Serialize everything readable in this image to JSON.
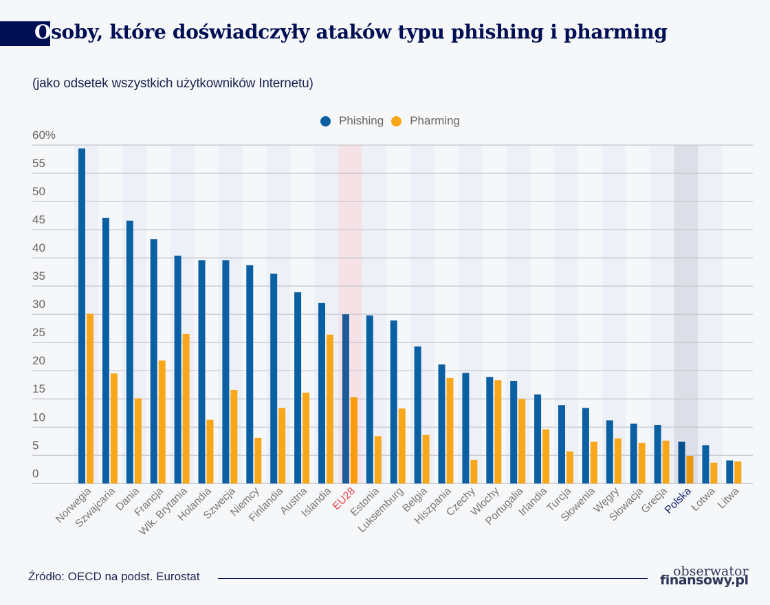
{
  "header": {
    "title_first_letter": "O",
    "title_rest": "soby, które doświadczyły ataków typu phishing i pharming",
    "subtitle": "(jako odsetek wszystkich użytkowników Internetu)"
  },
  "footer": {
    "source": "Źródło: OECD na podst. Eurostat",
    "logo_line1": "obserwator",
    "logo_line2": "finansowy.pl"
  },
  "colors": {
    "phishing": "#0b60a3",
    "pharming": "#f9a71a",
    "highlight_eu": "#f5e2e6",
    "highlight_pl": "#dcdfe7",
    "stripe": "#edf1f7",
    "eu_label": "#e8424c",
    "pl_label": "#13206b",
    "axis_text": "#666666"
  },
  "chart_data": {
    "type": "bar",
    "title": "Osoby, które doświadczyły ataków typu phishing i pharming",
    "subtitle": "(jako odsetek wszystkich użytkowników Internetu)",
    "xlabel": "",
    "ylabel": "",
    "ylim": [
      0,
      60
    ],
    "yticks": [
      0,
      5,
      10,
      15,
      20,
      25,
      30,
      35,
      40,
      45,
      50,
      55,
      60
    ],
    "ytick_labels": [
      "0",
      "5",
      "10",
      "15",
      "20",
      "25",
      "30",
      "35",
      "40",
      "45",
      "50",
      "55",
      "60%"
    ],
    "grid": true,
    "legend_position": "top-center",
    "categories": [
      "Norwegia",
      "Szwajcaria",
      "Dania",
      "Francja",
      "Wlk. Brytania",
      "Holandia",
      "Szwecja",
      "Niemcy",
      "Finlandia",
      "Austria",
      "Islandia",
      "EU28",
      "Estonia",
      "Luksemburg",
      "Belgia",
      "Hiszpania",
      "Czechy",
      "Włochy",
      "Portugalia",
      "Irlandia",
      "Turcja",
      "Słowenia",
      "Węgry",
      "Słowacja",
      "Grecja",
      "Polska",
      "Łotwa",
      "Litwa"
    ],
    "highlighted": {
      "EU28": "eu",
      "Polska": "pl"
    },
    "series": [
      {
        "name": "Phishing",
        "values": [
          59.4,
          47.1,
          46.6,
          43.3,
          40.4,
          39.6,
          39.6,
          38.7,
          37.2,
          33.9,
          32.0,
          30.0,
          29.8,
          28.9,
          24.3,
          21.1,
          19.6,
          18.9,
          18.2,
          15.8,
          13.9,
          13.4,
          11.2,
          10.6,
          10.4,
          7.4,
          6.8,
          4.1
        ]
      },
      {
        "name": "Pharming",
        "values": [
          30.1,
          19.5,
          15.1,
          21.8,
          26.5,
          11.3,
          16.6,
          8.1,
          13.4,
          16.1,
          26.4,
          15.3,
          8.4,
          13.3,
          8.6,
          18.7,
          4.2,
          18.3,
          15.0,
          9.6,
          5.7,
          7.4,
          8.0,
          7.2,
          7.6,
          4.9,
          3.7,
          3.9
        ]
      }
    ]
  }
}
